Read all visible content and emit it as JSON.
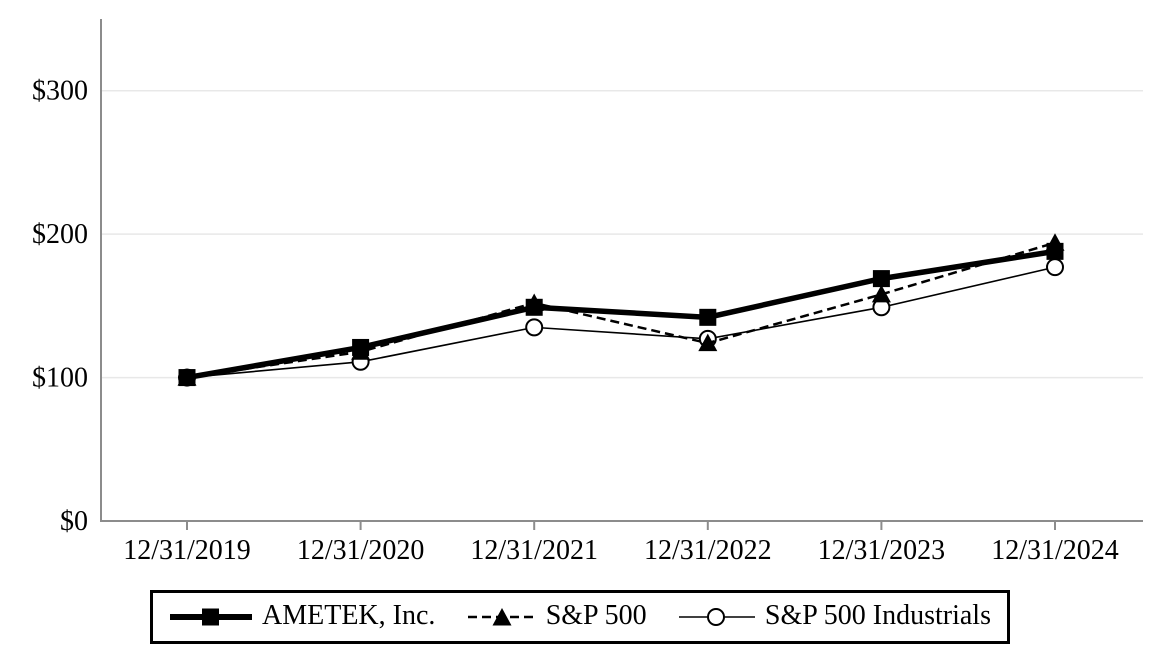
{
  "chart_data": {
    "type": "line",
    "title": "",
    "xlabel": "",
    "ylabel": "",
    "currency_prefix": "$",
    "ylim": [
      0,
      350
    ],
    "y_ticks": [
      0,
      100,
      200,
      300
    ],
    "y_tick_labels": [
      "$0",
      "$100",
      "$200",
      "$300"
    ],
    "categories": [
      "12/31/2019",
      "12/31/2020",
      "12/31/2021",
      "12/31/2022",
      "12/31/2023",
      "12/31/2024"
    ],
    "series": [
      {
        "key": "ametek",
        "name": "AMETEK, Inc.",
        "values": [
          100,
          121,
          149,
          142,
          169,
          188
        ],
        "marker": "filled-square",
        "line": "thick-solid"
      },
      {
        "key": "sp500",
        "name": "S&P 500",
        "values": [
          100,
          118,
          152,
          124,
          158,
          194
        ],
        "marker": "filled-triangle",
        "line": "dashed"
      },
      {
        "key": "sp500-industrials",
        "name": "S&P 500 Industrials",
        "values": [
          100,
          111,
          135,
          127,
          149,
          177
        ],
        "marker": "open-circle",
        "line": "thin-solid"
      }
    ],
    "legend_position": "bottom",
    "grid": "horizontal"
  },
  "colors": {
    "series_color": "#000000",
    "axis": "#8c8c8c",
    "gridline": "#e8e8e8",
    "background": "#ffffff",
    "legend_border": "#000000",
    "marker_fill_open": "#ffffff"
  }
}
